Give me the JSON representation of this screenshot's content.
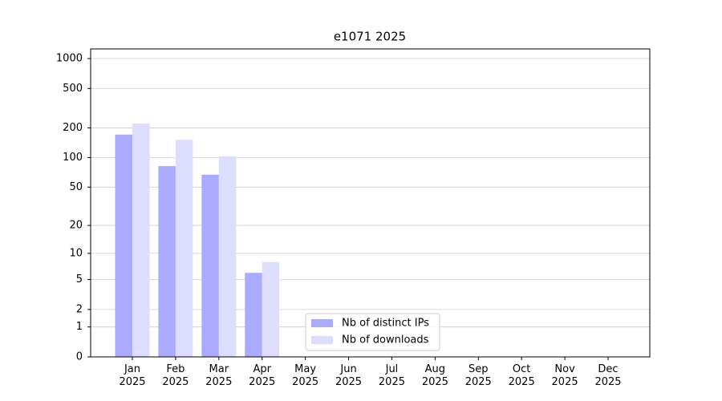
{
  "chart_data": {
    "type": "bar",
    "title": "e1071 2025",
    "scale": "log1p",
    "categories": [
      "Jan\n2025",
      "Feb\n2025",
      "Mar\n2025",
      "Apr\n2025",
      "May\n2025",
      "Jun\n2025",
      "Jul\n2025",
      "Aug\n2025",
      "Sep\n2025",
      "Oct\n2025",
      "Nov\n2025",
      "Dec\n2025"
    ],
    "series": [
      {
        "name": "Nb of distinct IPs",
        "color": "#aaaaff",
        "values": [
          171,
          82,
          67,
          6,
          null,
          null,
          null,
          null,
          null,
          null,
          null,
          null
        ]
      },
      {
        "name": "Nb of downloads",
        "color": "#ddddff",
        "values": [
          221,
          152,
          103,
          8,
          null,
          null,
          null,
          null,
          null,
          null,
          null,
          null
        ]
      }
    ],
    "ylim": [
      0,
      1250
    ],
    "yticks": [
      0,
      1,
      2,
      5,
      10,
      20,
      50,
      100,
      200,
      500,
      1000
    ],
    "grid": true,
    "legend": "lower center"
  }
}
